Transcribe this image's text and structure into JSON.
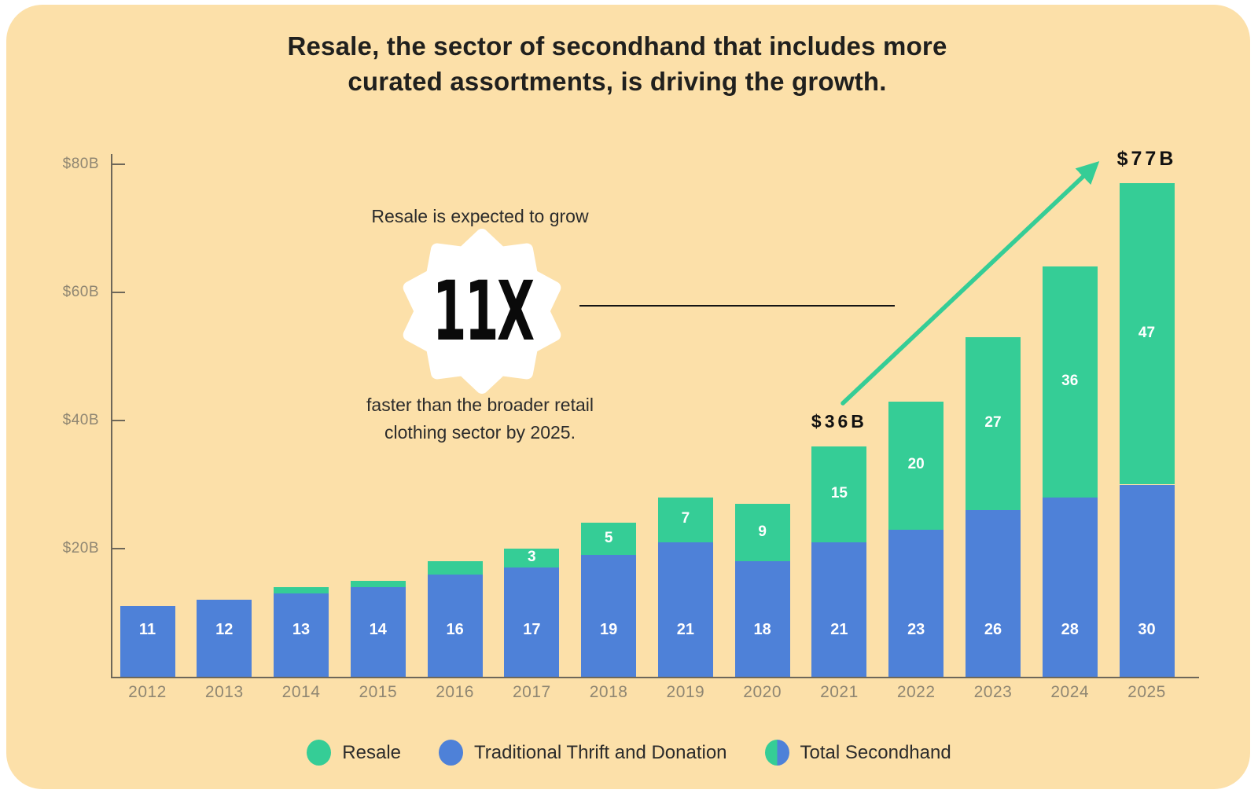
{
  "title": {
    "line1": "Resale, the sector of secondhand that includes more",
    "line2": "curated assortments, is driving the growth."
  },
  "callout": {
    "intro": "Resale is expected to grow",
    "badge": "11X",
    "outro_line1": "faster than the broader retail",
    "outro_line2": "clothing sector by 2025."
  },
  "annotations": [
    {
      "text": "$36B",
      "year": "2021"
    },
    {
      "text": "$77B",
      "year": "2025"
    }
  ],
  "legend": [
    {
      "label": "Resale"
    },
    {
      "label": "Traditional Thrift and Donation"
    },
    {
      "label": "Total Secondhand"
    }
  ],
  "colors": {
    "background": "#FCE0A9",
    "resale_green": "#35CD96",
    "thrift_blue": "#4E81D8",
    "axis": "#6E6759",
    "axis_label": "#8F8672",
    "title_text": "#20201E",
    "bar_label": "#FFFFFF",
    "annotation_text": "#111111",
    "arrow": "#35CD96",
    "badge_bg": "#FFFFFF",
    "badge_text": "#0A0A0A"
  },
  "chart_data": {
    "type": "bar",
    "stacked": true,
    "title": "Secondhand market size by year ($B)",
    "categories": [
      "2012",
      "2013",
      "2014",
      "2015",
      "2016",
      "2017",
      "2018",
      "2019",
      "2020",
      "2021",
      "2022",
      "2023",
      "2024",
      "2025"
    ],
    "series": [
      {
        "name": "Traditional Thrift and Donation",
        "color": "#4E81D8",
        "values": [
          11,
          12,
          13,
          14,
          16,
          17,
          19,
          21,
          18,
          21,
          23,
          26,
          28,
          30
        ],
        "labels": [
          "11",
          "12",
          "13",
          "14",
          "16",
          "17",
          "19",
          "21",
          "18",
          "21",
          "23",
          "26",
          "28",
          "30"
        ]
      },
      {
        "name": "Resale",
        "color": "#35CD96",
        "values": [
          0,
          0,
          1,
          1,
          2,
          3,
          5,
          7,
          9,
          15,
          20,
          27,
          36,
          47
        ],
        "labels": [
          "",
          "",
          "",
          "",
          "",
          "3",
          "5",
          "7",
          "9",
          "15",
          "20",
          "27",
          "36",
          "47"
        ]
      }
    ],
    "totals_annotated": {
      "2021": 36,
      "2025": 77
    },
    "y_ticks": [
      {
        "value": 20,
        "label": "$20B"
      },
      {
        "value": 40,
        "label": "$40B"
      },
      {
        "value": 60,
        "label": "$60B"
      },
      {
        "value": 80,
        "label": "$80B"
      }
    ],
    "ylim": [
      0,
      80
    ],
    "grid": false,
    "legend_position": "bottom"
  }
}
